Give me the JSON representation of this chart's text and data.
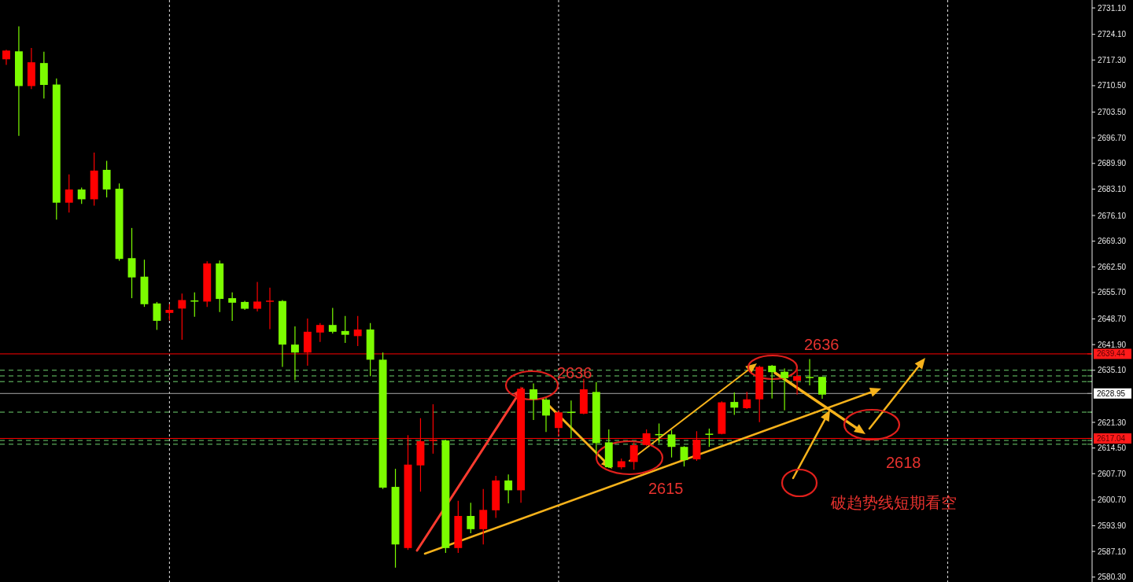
{
  "chart_data": {
    "type": "candlestick",
    "categories": [
      null,
      null,
      null,
      null,
      null,
      null,
      null,
      null,
      null,
      null,
      null,
      null,
      null,
      null,
      null,
      null,
      null,
      null,
      null,
      null,
      null,
      null,
      null,
      null,
      null,
      null,
      null,
      null,
      null,
      null,
      null,
      null,
      null,
      null,
      null,
      null,
      null,
      null,
      null,
      null,
      null,
      null,
      null,
      null,
      null,
      null,
      null,
      null,
      null,
      null,
      null,
      null,
      null,
      null,
      null,
      null,
      null,
      null,
      null,
      null,
      null,
      null,
      null,
      null,
      null,
      null,
      null,
      null,
      null,
      null,
      null,
      null,
      null,
      null,
      null,
      null,
      null,
      null,
      null,
      null,
      null,
      null,
      null,
      null,
      null,
      null,
      null
    ],
    "ohlc": [
      [
        2717.5,
        2720.0,
        2716.0,
        2719.8
      ],
      [
        2719.6,
        2726.2,
        2697.2,
        2710.4
      ],
      [
        2710.4,
        2720.5,
        2709.6,
        2716.7
      ],
      [
        2716.5,
        2719.5,
        2707.1,
        2710.7
      ],
      [
        2710.8,
        2712.4,
        2675.0,
        2679.5
      ],
      [
        2679.5,
        2687.0,
        2676.9,
        2683.0
      ],
      [
        2683.0,
        2683.5,
        2679.2,
        2680.4
      ],
      [
        2680.4,
        2692.8,
        2678.7,
        2688.0
      ],
      [
        2688.2,
        2690.6,
        2680.9,
        2683.0
      ],
      [
        2683.2,
        2684.6,
        2664.1,
        2664.6
      ],
      [
        2664.8,
        2672.8,
        2654.2,
        2659.7
      ],
      [
        2659.9,
        2664.4,
        2651.9,
        2652.6
      ],
      [
        2652.8,
        2653.2,
        2645.8,
        2648.2
      ],
      [
        2650.3,
        2652.6,
        2648.3,
        2651.1
      ],
      [
        2651.45,
        2655.4,
        2643.2,
        2653.7
      ],
      [
        2653.6,
        2655.75,
        2649.3,
        2653.5
      ],
      [
        2653.3,
        2663.95,
        2651.9,
        2663.4
      ],
      [
        2663.4,
        2664.2,
        2650.5,
        2654.0
      ],
      [
        2654.2,
        2655.75,
        2648.2,
        2653.0
      ],
      [
        2653.2,
        2653.5,
        2651.1,
        2651.4
      ],
      [
        2651.4,
        2658.5,
        2650.7,
        2653.3
      ],
      [
        2653.35,
        2657.0,
        2646.0,
        2653.55
      ],
      [
        2653.45,
        2653.7,
        2636.0,
        2641.9
      ],
      [
        2641.9,
        2646.7,
        2632.5,
        2639.8
      ],
      [
        2639.8,
        2648.8,
        2636.3,
        2645.3
      ],
      [
        2645.1,
        2647.6,
        2642.6,
        2647.1
      ],
      [
        2647.1,
        2651.6,
        2644.85,
        2645.3
      ],
      [
        2645.5,
        2649.5,
        2642.35,
        2644.5
      ],
      [
        2644.15,
        2649.5,
        2641.5,
        2645.9
      ],
      [
        2645.9,
        2647.6,
        2633.55,
        2637.9
      ],
      [
        2637.9,
        2639.8,
        2603.65,
        2604.0
      ],
      [
        2604.2,
        2609.0,
        2582.8,
        2588.95
      ],
      [
        2588.0,
        2617.9,
        2587.5,
        2610.1
      ],
      [
        2609.9,
        2622.4,
        2602.95,
        2616.3
      ],
      [
        2616.5,
        2626.1,
        2613.0,
        2616.7
      ],
      [
        2616.5,
        2616.7,
        2586.7,
        2588.0
      ],
      [
        2588.0,
        2600.5,
        2586.7,
        2596.5
      ],
      [
        2596.5,
        2600.0,
        2591.9,
        2593.0
      ],
      [
        2593.0,
        2603.65,
        2588.95,
        2598.1
      ],
      [
        2598.0,
        2607.15,
        2596.0,
        2605.9
      ],
      [
        2605.9,
        2607.5,
        2599.85,
        2603.3
      ],
      [
        2603.3,
        2630.75,
        2600.0,
        2630.2
      ],
      [
        2630.05,
        2631.6,
        2621.9,
        2627.4
      ],
      [
        2627.3,
        2627.8,
        2618.75,
        2623.1
      ],
      [
        2619.8,
        2624.5,
        2617.7,
        2623.95
      ],
      [
        2624.1,
        2627.1,
        2617.1,
        2624.0
      ],
      [
        2623.6,
        2632.8,
        2623.45,
        2630.05
      ],
      [
        2629.35,
        2632.0,
        2612.7,
        2615.8
      ],
      [
        2616.0,
        2619.4,
        2609.2,
        2609.4
      ],
      [
        2609.4,
        2611.7,
        2608.9,
        2611.0
      ],
      [
        2610.8,
        2616.0,
        2608.75,
        2615.25
      ],
      [
        2615.3,
        2619.4,
        2615.1,
        2618.4
      ],
      [
        2618.2,
        2621.0,
        2615.8,
        2618.1
      ],
      [
        2618.1,
        2619.3,
        2612.0,
        2614.8
      ],
      [
        2614.8,
        2615.0,
        2609.6,
        2611.3
      ],
      [
        2611.5,
        2618.95,
        2611.1,
        2616.7
      ],
      [
        2618.3,
        2619.65,
        2614.8,
        2618.2
      ],
      [
        2618.25,
        2626.9,
        2618.1,
        2626.6
      ],
      [
        2626.7,
        2629.2,
        2623.3,
        2625.2
      ],
      [
        2625.05,
        2629.4,
        2624.85,
        2627.4
      ],
      [
        2627.4,
        2636.3,
        2621.35,
        2636.0
      ],
      [
        2636.3,
        2636.5,
        2627.6,
        2634.6
      ],
      [
        2634.7,
        2635.6,
        2624.5,
        2633.0
      ],
      [
        2632.3,
        2635.4,
        2628.65,
        2633.55
      ],
      [
        2633.35,
        2638.05,
        2631.1,
        2633.25
      ],
      [
        2633.35,
        2633.4,
        2627.55,
        2628.65
      ],
      null,
      null,
      null,
      null,
      null,
      null,
      null,
      null,
      null,
      null,
      null,
      null,
      null,
      null,
      null,
      null,
      null,
      null,
      null,
      null,
      null
    ],
    "colors": [
      "#ff0000",
      "#7cfc00",
      "#ff0000",
      "#7cfc00",
      "#7cfc00",
      "#ff0000",
      "#7cfc00",
      "#ff0000",
      "#7cfc00",
      "#7cfc00",
      "#7cfc00",
      "#7cfc00",
      "#7cfc00",
      "#ff0000",
      "#ff0000",
      "#7cfc00",
      "#ff0000",
      "#7cfc00",
      "#7cfc00",
      "#7cfc00",
      "#ff0000",
      "#ff0000",
      "#7cfc00",
      "#7cfc00",
      "#ff0000",
      "#ff0000",
      "#7cfc00",
      "#7cfc00",
      "#ff0000",
      "#7cfc00",
      "#7cfc00",
      "#7cfc00",
      "#ff0000",
      "#ff0000",
      "#ff0000",
      "#7cfc00",
      "#ff0000",
      "#7cfc00",
      "#ff0000",
      "#ff0000",
      "#7cfc00",
      "#ff0000",
      "#7cfc00",
      "#7cfc00",
      "#ff0000",
      "#7cfc00",
      "#ff0000",
      "#7cfc00",
      "#7cfc00",
      "#ff0000",
      "#ff0000",
      "#ff0000",
      "#7cfc00",
      "#7cfc00",
      "#7cfc00",
      "#ff0000",
      "#7cfc00",
      "#ff0000",
      "#7cfc00",
      "#ff0000",
      "#ff0000",
      "#7cfc00",
      "#7cfc00",
      "#ff0000",
      "#7cfc00",
      "#7cfc00",
      null,
      null,
      null,
      null,
      null,
      null,
      null,
      null,
      null,
      null,
      null,
      null,
      null,
      null,
      null,
      null,
      null,
      null,
      null,
      null,
      null
    ],
    "ylim": [
      2579.0,
      2733.2
    ],
    "yticks": [
      {
        "value": 2731.1,
        "label": "2731.10"
      },
      {
        "value": 2724.1,
        "label": "2724.10"
      },
      {
        "value": 2717.3,
        "label": "2717.30"
      },
      {
        "value": 2710.5,
        "label": "2710.50"
      },
      {
        "value": 2703.5,
        "label": "2703.50"
      },
      {
        "value": 2696.7,
        "label": "2696.70"
      },
      {
        "value": 2689.9,
        "label": "2689.90"
      },
      {
        "value": 2683.1,
        "label": "2683.10"
      },
      {
        "value": 2676.1,
        "label": "2676.10"
      },
      {
        "value": 2669.3,
        "label": "2669.30"
      },
      {
        "value": 2662.5,
        "label": "2662.50"
      },
      {
        "value": 2655.7,
        "label": "2655.70"
      },
      {
        "value": 2648.7,
        "label": "2648.70"
      },
      {
        "value": 2641.9,
        "label": "2641.90"
      },
      {
        "value": 2635.1,
        "label": "2635.10"
      },
      {
        "value": 2621.3,
        "label": "2621.30"
      },
      {
        "value": 2614.5,
        "label": "2614.50"
      },
      {
        "value": 2607.7,
        "label": "2607.70"
      },
      {
        "value": 2600.7,
        "label": "2600.70"
      },
      {
        "value": 2593.9,
        "label": "2593.90"
      },
      {
        "value": 2587.1,
        "label": "2587.10"
      },
      {
        "value": 2580.3,
        "label": "2580.30"
      }
    ],
    "tick_labels": "y",
    "grid": "x",
    "ref_lines": [
      {
        "axis": "y",
        "value": 2639.44,
        "label": "2639.44",
        "color": "#ff0000",
        "line_style": "solid"
      },
      {
        "axis": "y",
        "value": 2628.95,
        "label": "2628.95",
        "color": "#a8a8a8",
        "line_style": "solid"
      },
      {
        "axis": "y",
        "value": 2617.04,
        "label": "2617.04",
        "color": "#ff0000",
        "line_style": "solid"
      },
      {
        "axis": "y",
        "value": 2635.1,
        "color": "#6fd36f",
        "line_style": "dashed"
      },
      {
        "axis": "y",
        "value": 2633.6,
        "color": "#6fd36f",
        "line_style": "dashed"
      },
      {
        "axis": "y",
        "value": 2632.1,
        "color": "#6fd36f",
        "line_style": "dashed"
      },
      {
        "axis": "y",
        "value": 2624.0,
        "color": "#6fd36f",
        "line_style": "dashed"
      },
      {
        "axis": "y",
        "value": 2616.5,
        "color": "#6fd36f",
        "line_style": "dashed"
      },
      {
        "axis": "y",
        "value": 2615.5,
        "color": "#6fd36f",
        "line_style": "dashed"
      }
    ],
    "annotations": [
      "2636",
      "2615",
      "2636",
      "2618",
      "破趋势线短期看空"
    ]
  }
}
